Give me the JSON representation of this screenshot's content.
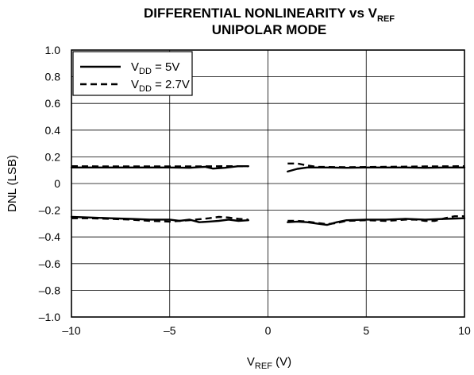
{
  "chart_data": {
    "type": "line",
    "title": {
      "line1_prefix": "DIFFERENTIAL NONLINEARITY vs V",
      "line1_sub": "REF",
      "line2": "UNIPOLAR MODE"
    },
    "xlabel": {
      "main": "V",
      "sub": "REF",
      "suffix": " (V)"
    },
    "ylabel": "DNL (LSB)",
    "xlim": [
      -10,
      10
    ],
    "ylim": [
      -1.0,
      1.0
    ],
    "xticks": [
      -10,
      -5,
      0,
      5,
      10
    ],
    "xtick_labels": [
      "–10",
      "–5",
      "0",
      "5",
      "10"
    ],
    "yticks": [
      1.0,
      0.8,
      0.6,
      0.4,
      0.2,
      0,
      -0.2,
      -0.4,
      -0.6,
      -0.8,
      -1.0
    ],
    "ytick_labels": [
      "1.0",
      "0.8",
      "0.6",
      "0.4",
      "0.2",
      "0",
      "–0.2",
      "–0.4",
      "–0.6",
      "–0.8",
      "–1.0"
    ],
    "grid": true,
    "legend_position": "top-left",
    "series": [
      {
        "legend": {
          "main": "V",
          "sub": "DD",
          "suffix": " = 5V"
        },
        "style": "solid",
        "color": "#000000",
        "segments": [
          [
            [
              -10,
              0.12
            ],
            [
              -8,
              0.12
            ],
            [
              -6,
              0.12
            ],
            [
              -5,
              0.12
            ],
            [
              -4,
              0.118
            ],
            [
              -3.2,
              0.125
            ],
            [
              -2.8,
              0.112
            ],
            [
              -2.2,
              0.118
            ],
            [
              -1.5,
              0.13
            ],
            [
              -1,
              0.13
            ]
          ],
          [
            [
              1,
              0.09
            ],
            [
              1.5,
              0.11
            ],
            [
              2,
              0.12
            ],
            [
              3,
              0.12
            ],
            [
              4,
              0.118
            ],
            [
              5,
              0.12
            ],
            [
              6,
              0.12
            ],
            [
              7,
              0.12
            ],
            [
              8,
              0.118
            ],
            [
              9,
              0.12
            ],
            [
              10,
              0.12
            ]
          ],
          [
            [
              -10,
              -0.25
            ],
            [
              -9,
              -0.255
            ],
            [
              -8,
              -0.26
            ],
            [
              -7,
              -0.265
            ],
            [
              -6,
              -0.27
            ],
            [
              -5,
              -0.27
            ],
            [
              -4.5,
              -0.28
            ],
            [
              -4,
              -0.27
            ],
            [
              -3.5,
              -0.29
            ],
            [
              -3,
              -0.285
            ],
            [
              -2.5,
              -0.28
            ],
            [
              -2,
              -0.27
            ],
            [
              -1.5,
              -0.28
            ],
            [
              -1,
              -0.275
            ]
          ],
          [
            [
              1,
              -0.29
            ],
            [
              1.5,
              -0.285
            ],
            [
              2,
              -0.29
            ],
            [
              2.5,
              -0.3
            ],
            [
              3,
              -0.31
            ],
            [
              3.5,
              -0.29
            ],
            [
              4,
              -0.275
            ],
            [
              5,
              -0.27
            ],
            [
              6,
              -0.27
            ],
            [
              7,
              -0.265
            ],
            [
              8,
              -0.27
            ],
            [
              9,
              -0.265
            ],
            [
              10,
              -0.26
            ]
          ]
        ]
      },
      {
        "legend": {
          "main": "V",
          "sub": "DD",
          "suffix": " = 2.7V"
        },
        "style": "dashed",
        "color": "#000000",
        "segments": [
          [
            [
              -10,
              0.13
            ],
            [
              -8,
              0.128
            ],
            [
              -6,
              0.128
            ],
            [
              -4,
              0.128
            ],
            [
              -2,
              0.13
            ],
            [
              -1,
              0.13
            ]
          ],
          [
            [
              1,
              0.15
            ],
            [
              1.5,
              0.15
            ],
            [
              2,
              0.135
            ],
            [
              2.5,
              0.125
            ],
            [
              4,
              0.122
            ],
            [
              6,
              0.125
            ],
            [
              8,
              0.128
            ],
            [
              10,
              0.13
            ]
          ],
          [
            [
              -10,
              -0.26
            ],
            [
              -9,
              -0.26
            ],
            [
              -8,
              -0.265
            ],
            [
              -7,
              -0.27
            ],
            [
              -6,
              -0.28
            ],
            [
              -5,
              -0.285
            ],
            [
              -4.5,
              -0.28
            ],
            [
              -4,
              -0.275
            ],
            [
              -3,
              -0.26
            ],
            [
              -2.5,
              -0.25
            ],
            [
              -2,
              -0.255
            ],
            [
              -1.5,
              -0.265
            ],
            [
              -1,
              -0.27
            ]
          ],
          [
            [
              1,
              -0.28
            ],
            [
              1.5,
              -0.28
            ],
            [
              2,
              -0.285
            ],
            [
              2.5,
              -0.295
            ],
            [
              3,
              -0.305
            ],
            [
              3.5,
              -0.295
            ],
            [
              4,
              -0.28
            ],
            [
              5,
              -0.275
            ],
            [
              6,
              -0.28
            ],
            [
              7,
              -0.27
            ],
            [
              7.5,
              -0.27
            ],
            [
              8,
              -0.28
            ],
            [
              8.5,
              -0.28
            ],
            [
              9,
              -0.26
            ],
            [
              9.5,
              -0.245
            ],
            [
              10,
              -0.245
            ]
          ]
        ]
      }
    ]
  }
}
